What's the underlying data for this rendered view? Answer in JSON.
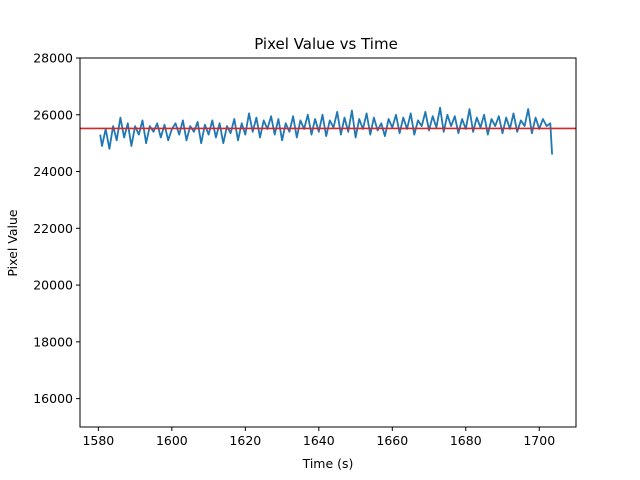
{
  "chart_data": {
    "type": "line",
    "title": "Pixel Value vs Time",
    "xlabel": "Time (s)",
    "ylabel": "Pixel Value",
    "xlim": [
      1575,
      1710
    ],
    "ylim": [
      15000,
      28000
    ],
    "xticks": [
      1580,
      1600,
      1620,
      1640,
      1660,
      1680,
      1700
    ],
    "yticks": [
      16000,
      18000,
      20000,
      22000,
      24000,
      26000,
      28000
    ],
    "grid": false,
    "reference_line": {
      "y": 25520,
      "color": "#d62728"
    },
    "series": [
      {
        "color": "#1f77b4",
        "x": [
          1580.5,
          1581,
          1582,
          1583,
          1584,
          1585,
          1586,
          1587,
          1588,
          1589,
          1590,
          1591,
          1592,
          1593,
          1594,
          1595,
          1596,
          1597,
          1598,
          1599,
          1600,
          1601,
          1602,
          1603,
          1604,
          1605,
          1606,
          1607,
          1608,
          1609,
          1610,
          1611,
          1612,
          1613,
          1614,
          1615,
          1616,
          1617,
          1618,
          1619,
          1620,
          1621,
          1622,
          1623,
          1624,
          1625,
          1626,
          1627,
          1628,
          1629,
          1630,
          1631,
          1632,
          1633,
          1634,
          1635,
          1636,
          1637,
          1638,
          1639,
          1640,
          1641,
          1642,
          1643,
          1644,
          1645,
          1646,
          1647,
          1648,
          1649,
          1650,
          1651,
          1652,
          1653,
          1654,
          1655,
          1656,
          1657,
          1658,
          1659,
          1660,
          1661,
          1662,
          1663,
          1664,
          1665,
          1666,
          1667,
          1668,
          1669,
          1670,
          1671,
          1672,
          1673,
          1674,
          1675,
          1676,
          1677,
          1678,
          1679,
          1680,
          1681,
          1682,
          1683,
          1684,
          1685,
          1686,
          1687,
          1688,
          1689,
          1690,
          1691,
          1692,
          1693,
          1694,
          1695,
          1696,
          1697,
          1698,
          1699,
          1700,
          1701,
          1702,
          1703,
          1703.5
        ],
        "y": [
          25300,
          24900,
          25500,
          24800,
          25600,
          25100,
          25900,
          25200,
          25700,
          24900,
          25600,
          25300,
          25800,
          25000,
          25600,
          25400,
          25700,
          25200,
          25650,
          25100,
          25500,
          25700,
          25300,
          25800,
          25100,
          25600,
          25400,
          25750,
          25000,
          25650,
          25300,
          25800,
          25200,
          25700,
          25000,
          25600,
          25350,
          25850,
          25100,
          25700,
          25300,
          26050,
          25400,
          25900,
          25200,
          25800,
          25500,
          25950,
          25300,
          25850,
          25100,
          25700,
          25400,
          25950,
          25200,
          25800,
          25500,
          26000,
          25300,
          25850,
          25400,
          26000,
          25250,
          25800,
          25550,
          26100,
          25300,
          25900,
          25400,
          26150,
          25200,
          25850,
          25500,
          26050,
          25300,
          25900,
          25450,
          25700,
          25250,
          25850,
          25550,
          26000,
          25350,
          25900,
          25500,
          26050,
          25300,
          25800,
          25600,
          26100,
          25450,
          25950,
          25550,
          26250,
          25400,
          26000,
          25600,
          25950,
          25350,
          25850,
          25500,
          26200,
          25400,
          25900,
          25550,
          26000,
          25300,
          25850,
          25600,
          25950,
          25350,
          25900,
          25500,
          26050,
          25400,
          25800,
          25600,
          26200,
          25350,
          25900,
          25500,
          25850,
          25600,
          25700,
          24600
        ]
      }
    ]
  }
}
